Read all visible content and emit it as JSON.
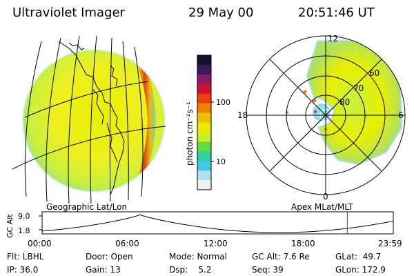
{
  "header": {
    "instrument": "Ultraviolet Imager",
    "date": "29 May 00",
    "time": "20:51:46 UT"
  },
  "colorbar": {
    "unit_label": "photon cm⁻²s⁻¹",
    "tick_high": "100",
    "tick_low": "10",
    "colors": [
      "#101030",
      "#3a1a5a",
      "#8a1a6a",
      "#d01030",
      "#f04010",
      "#f08000",
      "#f0c000",
      "#e8e800",
      "#c8f020",
      "#60e040",
      "#30d0a0",
      "#40c8e8",
      "#b0e0f0",
      "#f0f0f0"
    ]
  },
  "left_panel": {
    "caption": "Geographic Lat/Lon"
  },
  "right_panel": {
    "caption": "Apex MLat/MLT",
    "mlt_labels": {
      "top": "12",
      "bottom": "0",
      "left": "18",
      "right": "6"
    },
    "lat_labels": [
      "60",
      "70",
      "80"
    ]
  },
  "timeline": {
    "axis_label": "GC Alt",
    "y_ticks": [
      "9.0",
      "1.8"
    ],
    "x_ticks": [
      "00:00",
      "06:00",
      "12:00",
      "18:00",
      "23:59"
    ],
    "marker_time_hours": 20.86,
    "marker_color": "#e02020"
  },
  "info_row1": {
    "flt": "Flt: LBHL",
    "door": "Door: Open",
    "mode": "Mode: Normal",
    "gc_alt": "GC Alt: 7.6 Re",
    "glat": "GLat:  49.7"
  },
  "info_row2": {
    "ip": "IP: 36.0",
    "gain": "Gain: 13",
    "dsp": "Dsp:    5.2",
    "seq": "Seq: 39",
    "glon": "GLon: 172.9"
  }
}
